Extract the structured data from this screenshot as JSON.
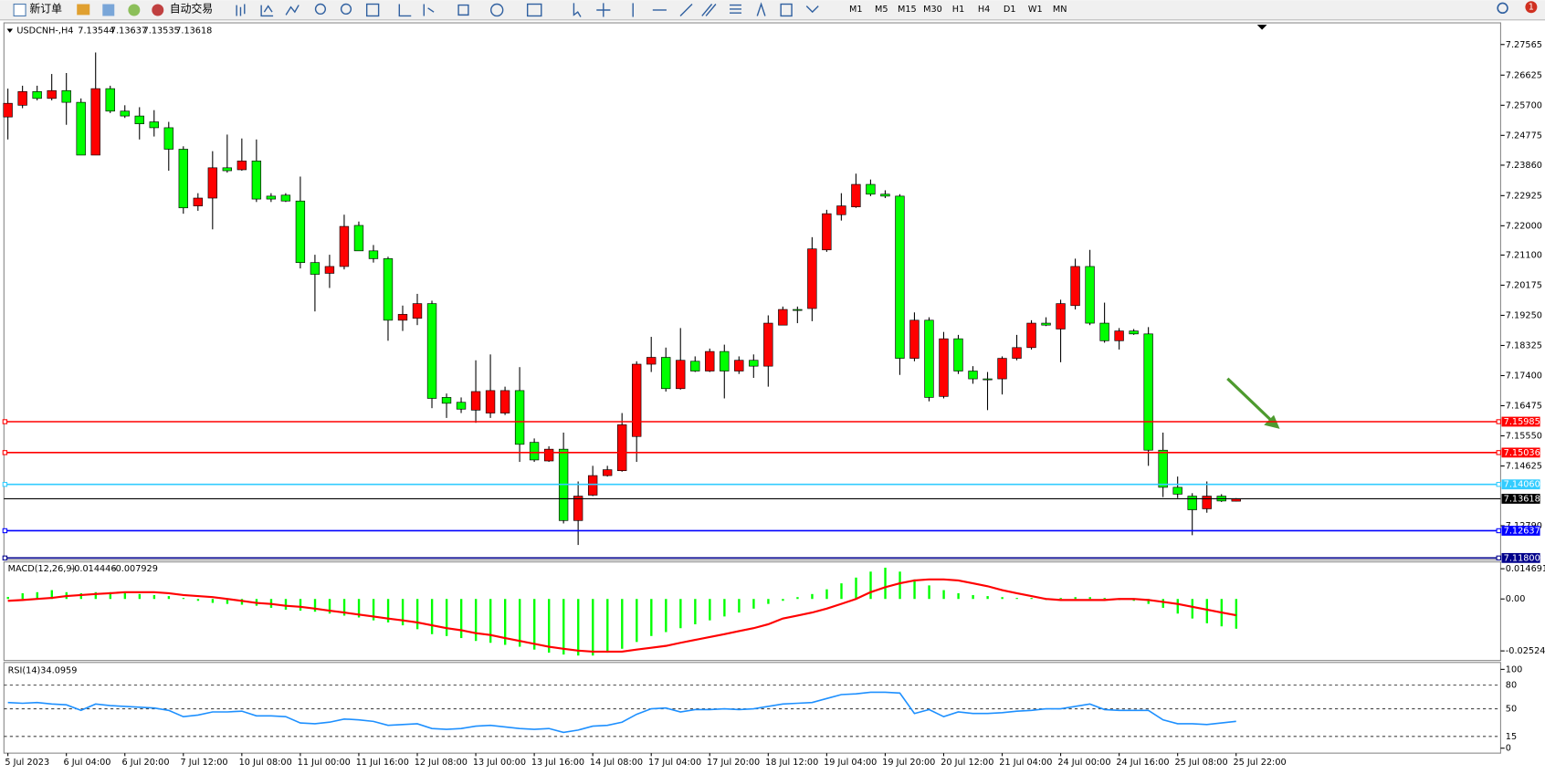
{
  "toolbar": {
    "new_order": "新订单",
    "auto_trading": "自动交易",
    "timeframes": [
      "M1",
      "M5",
      "M15",
      "M30",
      "H1",
      "H4",
      "D1",
      "W1",
      "MN"
    ],
    "badge": "1"
  },
  "chart_data": [
    {
      "type": "candlestick",
      "title": "USDCNH-,H4",
      "categories": [
        "5 Jul 2023",
        null,
        null,
        null,
        "6 Jul 04:00",
        null,
        null,
        null,
        "6 Jul 20:00",
        null,
        null,
        null,
        "7 Jul 12:00",
        null,
        null,
        null,
        "10 Jul 08:00",
        null,
        null,
        null,
        "11 Jul 00:00",
        null,
        null,
        null,
        "11 Jul 16:00",
        null,
        null,
        null,
        "12 Jul 08:00",
        null,
        null,
        null,
        "13 Jul 00:00",
        null,
        null,
        null,
        "13 Jul 16:00",
        null,
        null,
        null,
        "14 Jul 08:00",
        null,
        null,
        null,
        "17 Jul 04:00",
        null,
        null,
        null,
        "17 Jul 20:00",
        null,
        null,
        null,
        "18 Jul 12:00",
        null,
        null,
        null,
        "19 Jul 04:00",
        null,
        null,
        null,
        "19 Jul 20:00",
        null,
        null,
        null,
        "20 Jul 12:00",
        null,
        null,
        null,
        "21 Jul 04:00",
        null,
        null,
        null,
        "24 Jul 00:00",
        null,
        null,
        null,
        "24 Jul 16:00",
        null,
        null,
        null,
        "25 Jul 08:00",
        null,
        null,
        null,
        "25 Jul 22:00"
      ],
      "open": [
        7.2534,
        7.257,
        7.2612,
        7.2591,
        7.2615,
        7.2579,
        7.2417,
        7.2621,
        7.2552,
        7.2537,
        7.2519,
        7.2501,
        7.2435,
        7.2261,
        7.2285,
        7.2378,
        7.2372,
        7.2399,
        7.2291,
        7.2294,
        7.2276,
        7.2087,
        7.2054,
        7.2075,
        7.2201,
        7.2123,
        7.2099,
        7.191,
        7.1916,
        7.1961,
        7.1673,
        7.1658,
        7.1634,
        7.1625,
        7.1625,
        7.1694,
        7.1535,
        7.1478,
        7.1514,
        7.1295,
        7.1373,
        7.1433,
        7.1448,
        7.1553,
        7.1775,
        7.1796,
        7.17,
        7.1784,
        7.1754,
        7.1814,
        7.1754,
        7.1787,
        7.1769,
        7.1895,
        7.1943,
        7.1946,
        7.2126,
        7.2234,
        7.2258,
        7.2327,
        7.2297,
        7.2291,
        7.1793,
        7.191,
        7.1676,
        7.1853,
        7.1754,
        7.173,
        7.173,
        7.1793,
        7.1826,
        7.1901,
        7.1883,
        7.1955,
        7.2075,
        7.1901,
        7.1847,
        7.1877,
        7.1868,
        7.1511,
        7.1397,
        7.137,
        7.1331,
        7.137,
        7.13544
      ],
      "high": [
        7.2621,
        7.263,
        7.263,
        7.2666,
        7.2669,
        7.2591,
        7.2732,
        7.263,
        7.257,
        7.2564,
        7.2555,
        7.2519,
        7.2444,
        7.23,
        7.2429,
        7.248,
        7.2468,
        7.2465,
        7.23,
        7.23,
        7.2351,
        7.2111,
        7.2111,
        7.2234,
        7.2213,
        7.2141,
        7.2105,
        7.1955,
        7.1991,
        7.197,
        7.1685,
        7.1673,
        7.1787,
        7.1805,
        7.1706,
        7.1766,
        7.1547,
        7.1523,
        7.1565,
        7.1415,
        7.1463,
        7.1463,
        7.1625,
        7.1784,
        7.1859,
        7.1826,
        7.1886,
        7.1799,
        7.1823,
        7.1835,
        7.1799,
        7.1805,
        7.1925,
        7.1952,
        7.1952,
        7.2165,
        7.2249,
        7.23,
        7.236,
        7.2342,
        7.2309,
        7.2297,
        7.1934,
        7.1919,
        7.1874,
        7.1865,
        7.1769,
        7.1751,
        7.1799,
        7.1865,
        7.191,
        7.1919,
        7.1973,
        7.2099,
        7.2126,
        7.1964,
        7.1886,
        7.1883,
        7.1889,
        7.1565,
        7.143,
        7.1379,
        7.1415,
        7.1376,
        7.13637
      ],
      "low": [
        7.2465,
        7.2561,
        7.2585,
        7.2585,
        7.251,
        7.2417,
        7.2417,
        7.2546,
        7.2531,
        7.2465,
        7.2474,
        7.2369,
        7.2237,
        7.2246,
        7.2189,
        7.2363,
        7.2369,
        7.2273,
        7.2273,
        7.2273,
        7.2069,
        7.1937,
        7.2009,
        7.2066,
        7.2123,
        7.2087,
        7.1847,
        7.1877,
        7.1895,
        7.164,
        7.161,
        7.1625,
        7.1595,
        7.161,
        7.1619,
        7.1475,
        7.1475,
        7.1475,
        7.1286,
        7.122,
        7.137,
        7.143,
        7.1445,
        7.1475,
        7.1751,
        7.1691,
        7.1697,
        7.1751,
        7.1751,
        7.167,
        7.1745,
        7.1733,
        7.1706,
        7.1895,
        7.1901,
        7.1907,
        7.212,
        7.2216,
        7.2255,
        7.2291,
        7.2285,
        7.1742,
        7.1784,
        7.1661,
        7.167,
        7.1745,
        7.1715,
        7.1634,
        7.1682,
        7.1787,
        7.182,
        7.1892,
        7.1781,
        7.1943,
        7.1895,
        7.1841,
        7.182,
        7.1865,
        7.1463,
        7.1367,
        7.1364,
        7.125,
        7.1319,
        7.1352,
        7.13535
      ],
      "close": [
        7.2576,
        7.2612,
        7.2591,
        7.2615,
        7.2579,
        7.2417,
        7.2621,
        7.2552,
        7.2537,
        7.2513,
        7.2501,
        7.2435,
        7.2255,
        7.2285,
        7.2378,
        7.2369,
        7.2399,
        7.2282,
        7.2282,
        7.2276,
        7.2087,
        7.2051,
        7.2075,
        7.2198,
        7.2123,
        7.2099,
        7.191,
        7.1928,
        7.1961,
        7.167,
        7.1655,
        7.1637,
        7.1691,
        7.1694,
        7.1694,
        7.1529,
        7.1481,
        7.1514,
        7.1295,
        7.137,
        7.1433,
        7.1451,
        7.1589,
        7.1775,
        7.1796,
        7.17,
        7.1787,
        7.1754,
        7.1814,
        7.1754,
        7.1787,
        7.1769,
        7.1901,
        7.1943,
        7.194,
        7.2129,
        7.2237,
        7.2261,
        7.2327,
        7.2297,
        7.2291,
        7.1793,
        7.191,
        7.1673,
        7.1853,
        7.1754,
        7.173,
        7.1727,
        7.1793,
        7.1826,
        7.1901,
        7.1895,
        7.1961,
        7.2075,
        7.1901,
        7.1847,
        7.1877,
        7.1868,
        7.1511,
        7.1397,
        7.1376,
        7.1328,
        7.137,
        7.1355,
        7.13618
      ],
      "up_color": "#ff0000",
      "down_color": "#00ff00",
      "last_color": "#000000",
      "ylim": [
        7.118,
        7.282
      ],
      "yticks": [
        7.27565,
        7.26625,
        {
          "value": 7.257,
          "label": "7.25700"
        },
        7.24775,
        {
          "value": 7.2386,
          "label": "7.23860"
        },
        7.22925,
        {
          "value": 7.22,
          "label": "7.22000"
        },
        {
          "value": 7.211,
          "label": "7.21100"
        },
        7.20175,
        {
          "value": 7.1925,
          "label": "7.19250"
        },
        7.18325,
        {
          "value": 7.174,
          "label": "7.17400"
        },
        7.16475,
        {
          "value": 7.1555,
          "label": "7.15550"
        },
        7.14625,
        {
          "value": 7.1279,
          "label": "7.12790"
        }
      ],
      "levels": [
        {
          "value": 7.15985,
          "color": "#ff0000"
        },
        {
          "value": 7.15036,
          "color": "#ff0000"
        },
        {
          "value": 7.1406,
          "label": "7.14060",
          "color": "#33ccff"
        },
        {
          "value": 7.12637,
          "color": "#0000ff"
        },
        {
          "value": 7.118,
          "label": "7.11800",
          "color": "#00008b"
        }
      ]
    },
    {
      "type": "macd",
      "title": "MACD(12,26,9)",
      "histogram": [
        0.001,
        0.0028,
        0.0033,
        0.0043,
        0.0033,
        0.0028,
        0.0033,
        0.0033,
        0.0028,
        0.0024,
        0.0019,
        0.0014,
        0.0005,
        -0.0009,
        -0.0019,
        -0.0024,
        -0.0028,
        -0.0033,
        -0.0043,
        -0.0052,
        -0.0057,
        -0.0062,
        -0.0071,
        -0.0081,
        -0.009,
        -0.0104,
        -0.0114,
        -0.0128,
        -0.0147,
        -0.0171,
        -0.018,
        -0.019,
        -0.0204,
        -0.0213,
        -0.0223,
        -0.0232,
        -0.0246,
        -0.0261,
        -0.027,
        -0.0275,
        -0.0275,
        -0.0261,
        -0.0242,
        -0.0209,
        -0.018,
        -0.0161,
        -0.0142,
        -0.0123,
        -0.0104,
        -0.0085,
        -0.0066,
        -0.0047,
        -0.0024,
        -0.0009,
        0.0009,
        0.0024,
        0.0047,
        0.0076,
        0.0104,
        0.0133,
        0.0152,
        0.0133,
        0.0095,
        0.0066,
        0.0043,
        0.0028,
        0.0019,
        0.0014,
        0.0009,
        0.0005,
        0.0005,
        -0.0005,
        0.0005,
        0.0009,
        0.0009,
        0.0005,
        -0.0005,
        -0.0009,
        -0.0024,
        -0.0043,
        -0.0071,
        -0.0095,
        -0.0118,
        -0.0133,
        -0.014446
      ],
      "signal": [
        -0.0009,
        -0.0005,
        0,
        0.0005,
        0.0014,
        0.0019,
        0.0024,
        0.0028,
        0.0033,
        0.0033,
        0.0033,
        0.0028,
        0.0019,
        0.0014,
        0.0009,
        0,
        -0.0009,
        -0.0019,
        -0.0024,
        -0.0033,
        -0.0038,
        -0.0047,
        -0.0057,
        -0.0066,
        -0.0076,
        -0.0085,
        -0.0095,
        -0.0104,
        -0.0114,
        -0.0128,
        -0.0142,
        -0.0152,
        -0.0166,
        -0.0175,
        -0.019,
        -0.0204,
        -0.0218,
        -0.0232,
        -0.0242,
        -0.0251,
        -0.0256,
        -0.0256,
        -0.0256,
        -0.0246,
        -0.0237,
        -0.0228,
        -0.0213,
        -0.0199,
        -0.0185,
        -0.0171,
        -0.0156,
        -0.0142,
        -0.0123,
        -0.0095,
        -0.0081,
        -0.0066,
        -0.0047,
        -0.0024,
        0,
        0.0033,
        0.0057,
        0.0076,
        0.009,
        0.0095,
        0.0095,
        0.009,
        0.0076,
        0.0062,
        0.0043,
        0.0028,
        0.0014,
        0,
        -0.0005,
        -0.0005,
        -0.0005,
        -0.0005,
        0,
        0,
        -0.0005,
        -0.0014,
        -0.0024,
        -0.0038,
        -0.0052,
        -0.0066,
        -0.007929
      ],
      "histogram_color": "#00ff00",
      "signal_color": "#ff0000",
      "ylim": [
        -0.0299,
        0.018
      ],
      "yticks": [
        0.014691,
        {
          "value": 0,
          "label": "0.00"
        },
        -0.02524
      ]
    },
    {
      "type": "rsi",
      "title": "RSI(14)",
      "values": [
        58,
        57,
        58,
        56,
        55,
        48,
        56,
        54,
        53,
        52,
        51,
        48,
        40,
        42,
        46,
        46,
        47,
        41,
        41,
        40,
        32,
        31,
        33,
        37,
        36,
        34,
        29,
        30,
        31,
        25,
        24,
        25,
        28,
        29,
        27,
        25,
        24,
        25,
        20,
        23,
        28,
        29,
        33,
        43,
        50,
        51,
        46,
        49,
        49,
        50,
        49,
        50,
        53,
        56,
        57,
        58,
        63,
        68,
        69,
        71,
        71,
        70,
        44,
        49,
        40,
        46,
        44,
        44,
        45,
        47,
        48,
        50,
        50,
        53,
        56,
        49,
        48,
        48,
        48,
        36,
        31,
        31,
        30,
        32,
        34.0959
      ],
      "color": "#1e90ff",
      "ylim": [
        0,
        100
      ],
      "yticks": [
        0,
        15,
        50,
        80,
        100
      ]
    }
  ]
}
